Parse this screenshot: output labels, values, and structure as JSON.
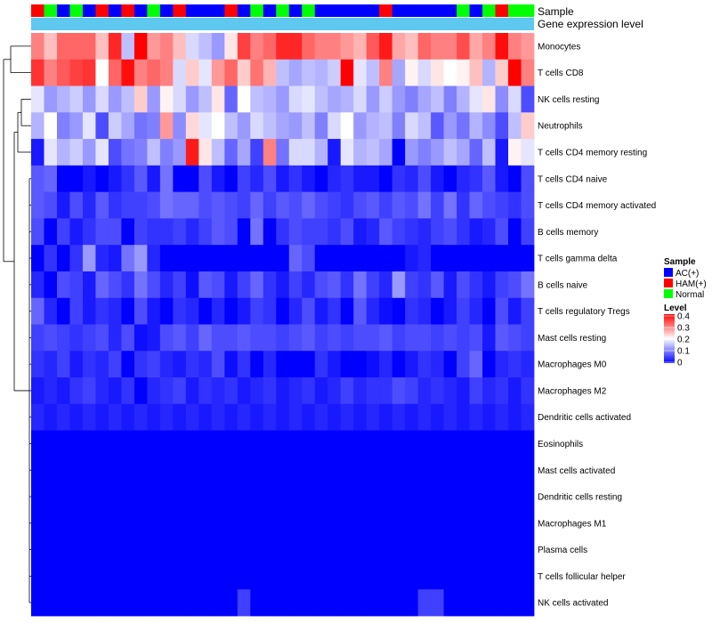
{
  "chart_data": {
    "type": "heatmap",
    "title": "",
    "annotation_tracks": [
      "Sample",
      "Gene expression level"
    ],
    "rows": [
      "Monocytes",
      "T cells CD8",
      "NK cells resting",
      "Neutrophils",
      "T cells CD4 memory resting",
      "T cells CD4 naive",
      "T cells CD4 memory activated",
      "B cells memory",
      "T cells gamma delta",
      "B cells naive",
      "T cells regulatory  Tregs",
      "Mast cells resting",
      "Macrophages M0",
      "Macrophages M2",
      "Dendritic cells activated",
      "Eosinophils",
      "Mast cells activated",
      "Dendritic cells resting",
      "Macrophages M1",
      "Plasma cells",
      "T cells follicular helper",
      "NK cells activated"
    ],
    "sample_groups": [
      "HAM(+)",
      "Normal",
      "AC(+)",
      "Normal",
      "AC(+)",
      "HAM(+)",
      "AC(+)",
      "HAM(+)",
      "AC(+)",
      "Normal",
      "AC(+)",
      "HAM(+)",
      "AC(+)",
      "AC(+)",
      "AC(+)",
      "HAM(+)",
      "AC(+)",
      "Normal",
      "AC(+)",
      "Normal",
      "AC(+)",
      "Normal",
      "AC(+)",
      "AC(+)",
      "AC(+)",
      "AC(+)",
      "AC(+)",
      "HAM(+)",
      "AC(+)",
      "AC(+)",
      "AC(+)",
      "AC(+)",
      "AC(+)",
      "Normal",
      "AC(+)",
      "Normal",
      "HAM(+)",
      "Normal",
      "Normal"
    ],
    "legend": {
      "sample_title": "Sample",
      "sample_entries": [
        {
          "label": "AC(+)",
          "color": "#0000ff"
        },
        {
          "label": "HAM(+)",
          "color": "#ff0000"
        },
        {
          "label": "Normal",
          "color": "#00ff00"
        }
      ],
      "level_title": "Level",
      "level_ticks": [
        "0.4",
        "0.3",
        "0.2",
        "0.1",
        "0"
      ],
      "level_range": [
        0,
        0.4
      ],
      "color_low": "#0000ff",
      "color_mid": "#ffffff",
      "color_high": "#ff0000",
      "placement": "right"
    },
    "gene_expression_color": "#5ec8ee",
    "values": [
      [
        0.3,
        0.25,
        0.32,
        0.32,
        0.32,
        0.25,
        0.37,
        0.15,
        0.4,
        0.28,
        0.3,
        0.25,
        0.17,
        0.15,
        0.12,
        0.22,
        0.35,
        0.3,
        0.32,
        0.37,
        0.37,
        0.32,
        0.3,
        0.3,
        0.28,
        0.26,
        0.33,
        0.38,
        0.27,
        0.25,
        0.32,
        0.3,
        0.3,
        0.34,
        0.27,
        0.3,
        0.39,
        0.3,
        0.28
      ],
      [
        0.36,
        0.3,
        0.33,
        0.35,
        0.36,
        0.2,
        0.32,
        0.39,
        0.3,
        0.32,
        0.3,
        0.17,
        0.24,
        0.18,
        0.28,
        0.32,
        0.24,
        0.31,
        0.26,
        0.15,
        0.13,
        0.15,
        0.14,
        0.16,
        0.4,
        0.18,
        0.15,
        0.3,
        0.13,
        0.21,
        0.17,
        0.22,
        0.2,
        0.21,
        0.25,
        0.14,
        0.24,
        0.4,
        0.3
      ],
      [
        0.18,
        0.12,
        0.14,
        0.16,
        0.12,
        0.17,
        0.12,
        0.15,
        0.24,
        0.12,
        0.21,
        0.17,
        0.12,
        0.15,
        0.22,
        0.08,
        0.2,
        0.15,
        0.14,
        0.12,
        0.17,
        0.18,
        0.15,
        0.13,
        0.14,
        0.17,
        0.12,
        0.16,
        0.12,
        0.1,
        0.13,
        0.15,
        0.1,
        0.14,
        0.18,
        0.22,
        0.11,
        0.17,
        0.06
      ],
      [
        0.14,
        0.2,
        0.1,
        0.12,
        0.18,
        0.06,
        0.16,
        0.13,
        0.09,
        0.1,
        0.28,
        0.11,
        0.23,
        0.18,
        0.2,
        0.15,
        0.12,
        0.17,
        0.15,
        0.13,
        0.12,
        0.15,
        0.1,
        0.17,
        0.2,
        0.12,
        0.14,
        0.15,
        0.1,
        0.17,
        0.15,
        0.07,
        0.12,
        0.09,
        0.14,
        0.11,
        0.06,
        0.15,
        0.24
      ],
      [
        0.02,
        0.18,
        0.14,
        0.16,
        0.12,
        0.18,
        0.06,
        0.09,
        0.1,
        0.15,
        0.1,
        0.12,
        0.38,
        0.22,
        0.15,
        0.08,
        0.13,
        0.05,
        0.3,
        0.09,
        0.17,
        0.17,
        0.14,
        0.02,
        0.18,
        0.14,
        0.15,
        0.13,
        0.0,
        0.12,
        0.1,
        0.12,
        0.15,
        0.13,
        0.08,
        0.15,
        0.02,
        0.21,
        0.18
      ],
      [
        0.07,
        0.08,
        0.0,
        0.0,
        0.02,
        0.0,
        0.02,
        0.04,
        0.07,
        0.02,
        0.09,
        0.0,
        0.0,
        0.06,
        0.02,
        0.0,
        0.05,
        0.03,
        0.06,
        0.02,
        0.04,
        0.02,
        0.0,
        0.03,
        0.04,
        0.02,
        0.02,
        0.0,
        0.04,
        0.03,
        0.06,
        0.02,
        0.0,
        0.03,
        0.04,
        0.07,
        0.02,
        0.0,
        0.06
      ],
      [
        0.07,
        0.06,
        0.02,
        0.06,
        0.03,
        0.07,
        0.04,
        0.05,
        0.05,
        0.06,
        0.09,
        0.08,
        0.08,
        0.06,
        0.07,
        0.06,
        0.05,
        0.08,
        0.05,
        0.07,
        0.06,
        0.08,
        0.06,
        0.05,
        0.04,
        0.06,
        0.07,
        0.05,
        0.07,
        0.06,
        0.09,
        0.05,
        0.09,
        0.04,
        0.08,
        0.06,
        0.05,
        0.04,
        0.06
      ],
      [
        0.06,
        0.0,
        0.05,
        0.02,
        0.04,
        0.06,
        0.06,
        0.0,
        0.05,
        0.04,
        0.04,
        0.05,
        0.03,
        0.05,
        0.07,
        0.06,
        0.0,
        0.09,
        0.0,
        0.04,
        0.06,
        0.05,
        0.05,
        0.04,
        0.06,
        0.02,
        0.03,
        0.07,
        0.05,
        0.04,
        0.03,
        0.05,
        0.06,
        0.04,
        0.02,
        0.03,
        0.06,
        0.0,
        0.05
      ],
      [
        0.0,
        0.04,
        0.0,
        0.04,
        0.12,
        0.03,
        0.02,
        0.09,
        0.12,
        0.03,
        0.0,
        0.0,
        0.0,
        0.0,
        0.0,
        0.0,
        0.0,
        0.0,
        0.0,
        0.0,
        0.08,
        0.06,
        0.0,
        0.0,
        0.0,
        0.0,
        0.0,
        0.0,
        0.0,
        0.02,
        0.03,
        0.0,
        0.0,
        0.0,
        0.0,
        0.0,
        0.0,
        0.0,
        0.0
      ],
      [
        0.03,
        0.0,
        0.06,
        0.05,
        0.02,
        0.08,
        0.06,
        0.04,
        0.09,
        0.06,
        0.03,
        0.05,
        0.01,
        0.07,
        0.06,
        0.02,
        0.05,
        0.08,
        0.04,
        0.02,
        0.05,
        0.03,
        0.06,
        0.07,
        0.04,
        0.09,
        0.05,
        0.03,
        0.12,
        0.05,
        0.04,
        0.07,
        0.02,
        0.06,
        0.04,
        0.02,
        0.05,
        0.06,
        0.09
      ],
      [
        0.08,
        0.03,
        0.0,
        0.05,
        0.02,
        0.04,
        0.03,
        0.0,
        0.06,
        0.02,
        0.0,
        0.04,
        0.03,
        0.0,
        0.03,
        0.0,
        0.02,
        0.05,
        0.04,
        0.0,
        0.03,
        0.06,
        0.02,
        0.04,
        0.0,
        0.07,
        0.03,
        0.01,
        0.0,
        0.04,
        0.03,
        0.0,
        0.02,
        0.05,
        0.03,
        0.0,
        0.06,
        0.02,
        0.05
      ],
      [
        0.05,
        0.06,
        0.05,
        0.04,
        0.05,
        0.06,
        0.03,
        0.06,
        0.01,
        0.02,
        0.06,
        0.07,
        0.05,
        0.08,
        0.06,
        0.06,
        0.07,
        0.06,
        0.06,
        0.05,
        0.06,
        0.07,
        0.05,
        0.06,
        0.05,
        0.06,
        0.06,
        0.07,
        0.05,
        0.06,
        0.06,
        0.05,
        0.06,
        0.05,
        0.06,
        0.02,
        0.07,
        0.06,
        0.05
      ],
      [
        0.04,
        0.03,
        0.05,
        0.02,
        0.04,
        0.03,
        0.05,
        0.0,
        0.04,
        0.05,
        0.03,
        0.02,
        0.04,
        0.03,
        0.06,
        0.01,
        0.04,
        0.0,
        0.03,
        0.0,
        0.0,
        0.0,
        0.04,
        0.02,
        0.0,
        0.0,
        0.01,
        0.03,
        0.0,
        0.02,
        0.04,
        0.03,
        0.0,
        0.05,
        0.08,
        0.0,
        0.03,
        0.04,
        0.03
      ],
      [
        0.02,
        0.03,
        0.02,
        0.04,
        0.05,
        0.03,
        0.02,
        0.04,
        0.0,
        0.03,
        0.04,
        0.05,
        0.02,
        0.04,
        0.03,
        0.04,
        0.02,
        0.03,
        0.04,
        0.02,
        0.03,
        0.04,
        0.02,
        0.03,
        0.05,
        0.03,
        0.04,
        0.04,
        0.06,
        0.05,
        0.03,
        0.04,
        0.03,
        0.02,
        0.05,
        0.03,
        0.04,
        0.02,
        0.04
      ],
      [
        0.03,
        0.02,
        0.03,
        0.02,
        0.03,
        0.02,
        0.03,
        0.02,
        0.03,
        0.02,
        0.03,
        0.02,
        0.03,
        0.02,
        0.03,
        0.02,
        0.03,
        0.02,
        0.03,
        0.02,
        0.03,
        0.02,
        0.03,
        0.02,
        0.03,
        0.02,
        0.03,
        0.02,
        0.03,
        0.02,
        0.03,
        0.02,
        0.03,
        0.02,
        0.03,
        0.02,
        0.03,
        0.02,
        0.03
      ],
      [
        0,
        0,
        0,
        0,
        0,
        0,
        0,
        0,
        0,
        0,
        0,
        0,
        0,
        0,
        0,
        0,
        0,
        0,
        0,
        0,
        0,
        0,
        0,
        0,
        0,
        0,
        0,
        0,
        0,
        0,
        0,
        0,
        0,
        0,
        0,
        0,
        0,
        0,
        0
      ],
      [
        0,
        0,
        0,
        0,
        0,
        0,
        0,
        0,
        0,
        0,
        0,
        0,
        0,
        0,
        0,
        0,
        0,
        0,
        0,
        0,
        0,
        0,
        0,
        0,
        0,
        0,
        0,
        0,
        0,
        0,
        0,
        0,
        0,
        0,
        0,
        0,
        0,
        0,
        0
      ],
      [
        0,
        0,
        0,
        0,
        0,
        0,
        0,
        0,
        0,
        0,
        0,
        0,
        0,
        0,
        0,
        0,
        0,
        0,
        0,
        0,
        0,
        0,
        0,
        0,
        0,
        0,
        0,
        0,
        0,
        0,
        0,
        0,
        0,
        0,
        0,
        0,
        0,
        0,
        0
      ],
      [
        0,
        0,
        0,
        0,
        0,
        0,
        0,
        0,
        0,
        0,
        0,
        0,
        0,
        0,
        0,
        0,
        0,
        0,
        0,
        0,
        0,
        0,
        0,
        0,
        0,
        0,
        0,
        0,
        0,
        0,
        0,
        0,
        0,
        0,
        0,
        0,
        0,
        0,
        0
      ],
      [
        0,
        0,
        0,
        0,
        0,
        0,
        0,
        0,
        0,
        0,
        0,
        0,
        0,
        0,
        0,
        0,
        0,
        0,
        0,
        0,
        0,
        0,
        0,
        0,
        0,
        0,
        0,
        0,
        0,
        0,
        0,
        0,
        0,
        0,
        0,
        0,
        0,
        0,
        0
      ],
      [
        0,
        0,
        0,
        0,
        0,
        0,
        0,
        0,
        0,
        0,
        0,
        0,
        0,
        0,
        0,
        0,
        0,
        0,
        0,
        0,
        0,
        0,
        0,
        0,
        0,
        0,
        0,
        0,
        0,
        0,
        0,
        0,
        0,
        0,
        0,
        0,
        0,
        0,
        0
      ],
      [
        0,
        0,
        0,
        0,
        0,
        0,
        0,
        0,
        0,
        0,
        0,
        0,
        0,
        0,
        0,
        0,
        0.05,
        0,
        0,
        0,
        0,
        0,
        0,
        0,
        0,
        0,
        0,
        0,
        0,
        0,
        0.05,
        0.05,
        0,
        0,
        0,
        0,
        0,
        0,
        0
      ]
    ]
  }
}
